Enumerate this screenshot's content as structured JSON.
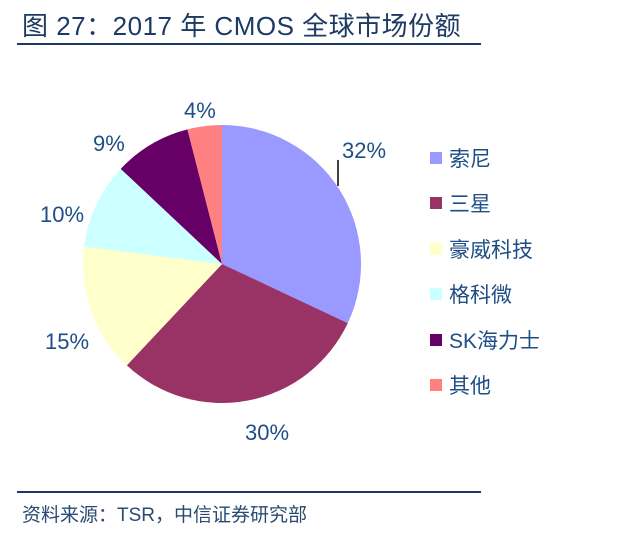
{
  "header": {
    "title": "图 27：2017 年 CMOS 全球市场份额"
  },
  "footer": {
    "source": "资料来源：TSR，中信证券研究部"
  },
  "chart_data": {
    "type": "pie",
    "title": "2017 年 CMOS 全球市场份额",
    "categories": [
      "索尼",
      "三星",
      "豪威科技",
      "格科微",
      "SK海力士",
      "其他"
    ],
    "values": [
      32,
      30,
      15,
      10,
      9,
      4
    ],
    "labels": [
      "32%",
      "30%",
      "15%",
      "10%",
      "9%",
      "4%"
    ],
    "colors": [
      "#9999ff",
      "#993366",
      "#ffffcc",
      "#ccffff",
      "#660066",
      "#ff8080"
    ],
    "unit": "%",
    "start_angle": "12 o'clock, clockwise",
    "legend_position": "right"
  },
  "legend": {
    "items": [
      {
        "label": "索尼",
        "color": "#9999ff"
      },
      {
        "label": "三星",
        "color": "#993366"
      },
      {
        "label": "豪威科技",
        "color": "#ffffcc"
      },
      {
        "label": "格科微",
        "color": "#ccffff"
      },
      {
        "label": "SK海力士",
        "color": "#660066"
      },
      {
        "label": "其他",
        "color": "#ff8080"
      }
    ]
  }
}
